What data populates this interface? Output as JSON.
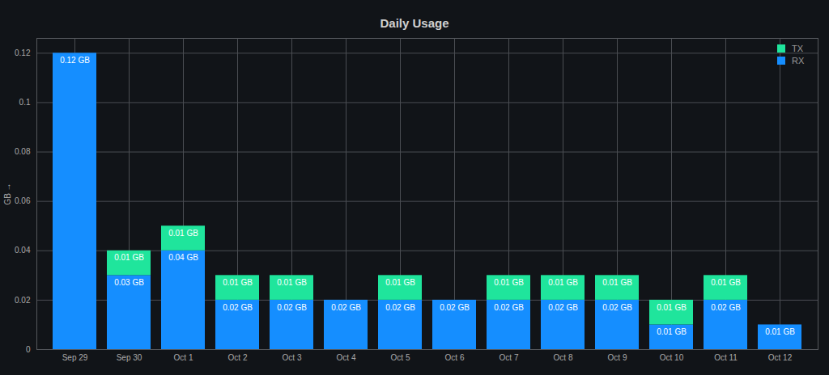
{
  "chart_data": {
    "type": "bar",
    "title": "Daily Usage",
    "y_label": "GB",
    "categories": [
      "Sep 29",
      "Sep 30",
      "Oct 1",
      "Oct 2",
      "Oct 3",
      "Oct 4",
      "Oct 5",
      "Oct 6",
      "Oct 7",
      "Oct 8",
      "Oct 9",
      "Oct 10",
      "Oct 11",
      "Oct 12"
    ],
    "series": [
      {
        "name": "TX",
        "color": "#1fe59c",
        "values": [
          null,
          0.01,
          0.01,
          0.01,
          0.01,
          null,
          0.01,
          null,
          0.01,
          0.01,
          0.01,
          0.01,
          0.01,
          null
        ],
        "value_labels": [
          null,
          "0.01 GB",
          "0.01 GB",
          "0.01 GB",
          "0.01 GB",
          null,
          "0.01 GB",
          null,
          "0.01 GB",
          "0.01 GB",
          "0.01 GB",
          "0.01 GB",
          "0.01 GB",
          null
        ]
      },
      {
        "name": "RX",
        "color": "#158eff",
        "values": [
          0.12,
          0.03,
          0.04,
          0.02,
          0.02,
          0.02,
          0.02,
          0.02,
          0.02,
          0.02,
          0.02,
          0.01,
          0.02,
          0.01
        ],
        "value_labels": [
          "0.12 GB",
          "0.03 GB",
          "0.04 GB",
          "0.02 GB",
          "0.02 GB",
          "0.02 GB",
          "0.02 GB",
          "0.02 GB",
          "0.02 GB",
          "0.02 GB",
          "0.02 GB",
          "0.01 GB",
          "0.02 GB",
          "0.01 GB"
        ]
      }
    ],
    "ylim": [
      0,
      0.126
    ],
    "yticks": [
      0,
      0.02,
      0.04,
      0.06,
      0.08,
      0.1,
      0.12
    ],
    "stacked": true,
    "data_labels": true,
    "grid": true,
    "legend": "top-right"
  }
}
